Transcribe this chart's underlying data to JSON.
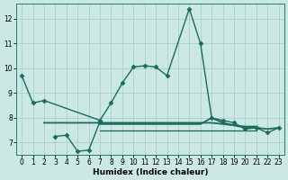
{
  "xlabel": "Humidex (Indice chaleur)",
  "background_color": "#cce8e4",
  "grid_color": "#aacfcb",
  "line_color": "#1a6b5a",
  "x_range": [
    -0.5,
    23.5
  ],
  "y_range": [
    6.5,
    12.6
  ],
  "yticks": [
    7,
    8,
    9,
    10,
    11,
    12
  ],
  "xticks": [
    0,
    1,
    2,
    3,
    4,
    5,
    6,
    7,
    8,
    9,
    10,
    11,
    12,
    13,
    14,
    15,
    16,
    17,
    18,
    19,
    20,
    21,
    22,
    23
  ],
  "series": [
    {
      "x": [
        0,
        1,
        2,
        7,
        8,
        9,
        10,
        11,
        12,
        13,
        15,
        16,
        17,
        18,
        19,
        20,
        21,
        22,
        23
      ],
      "y": [
        9.7,
        8.6,
        8.7,
        7.9,
        8.6,
        9.4,
        10.05,
        10.1,
        10.05,
        9.7,
        12.4,
        11.0,
        8.0,
        7.9,
        7.8,
        7.55,
        7.6,
        7.4,
        7.6
      ],
      "marker": "D",
      "markersize": 2.5,
      "linewidth": 1.0
    },
    {
      "x": [
        3,
        4,
        5,
        6,
        7
      ],
      "y": [
        7.25,
        7.3,
        6.65,
        6.7,
        7.85
      ],
      "marker": "D",
      "markersize": 2.5,
      "linewidth": 1.0
    },
    {
      "x": [
        2,
        7,
        8,
        9,
        10,
        11,
        12,
        13,
        14,
        15,
        16,
        17,
        18,
        19,
        20,
        21
      ],
      "y": [
        7.8,
        7.8,
        7.8,
        7.8,
        7.8,
        7.8,
        7.8,
        7.8,
        7.8,
        7.8,
        7.8,
        7.8,
        7.75,
        7.7,
        7.65,
        7.65
      ],
      "marker": null,
      "markersize": 0,
      "linewidth": 1.3
    },
    {
      "x": [
        7,
        8,
        9,
        10,
        11,
        12,
        13,
        14,
        15,
        16,
        17,
        18,
        19,
        20,
        21,
        22,
        23
      ],
      "y": [
        7.75,
        7.75,
        7.75,
        7.75,
        7.75,
        7.75,
        7.75,
        7.75,
        7.75,
        7.75,
        8.0,
        7.8,
        7.7,
        7.6,
        7.6,
        7.55,
        7.6
      ],
      "marker": null,
      "markersize": 0,
      "linewidth": 1.3
    },
    {
      "x": [
        7,
        8,
        9,
        10,
        11,
        12,
        13,
        14,
        15,
        16,
        17,
        18,
        19,
        20,
        21
      ],
      "y": [
        7.5,
        7.5,
        7.5,
        7.5,
        7.5,
        7.5,
        7.5,
        7.5,
        7.5,
        7.5,
        7.5,
        7.5,
        7.5,
        7.5,
        7.5
      ],
      "marker": null,
      "markersize": 0,
      "linewidth": 0.9
    }
  ]
}
